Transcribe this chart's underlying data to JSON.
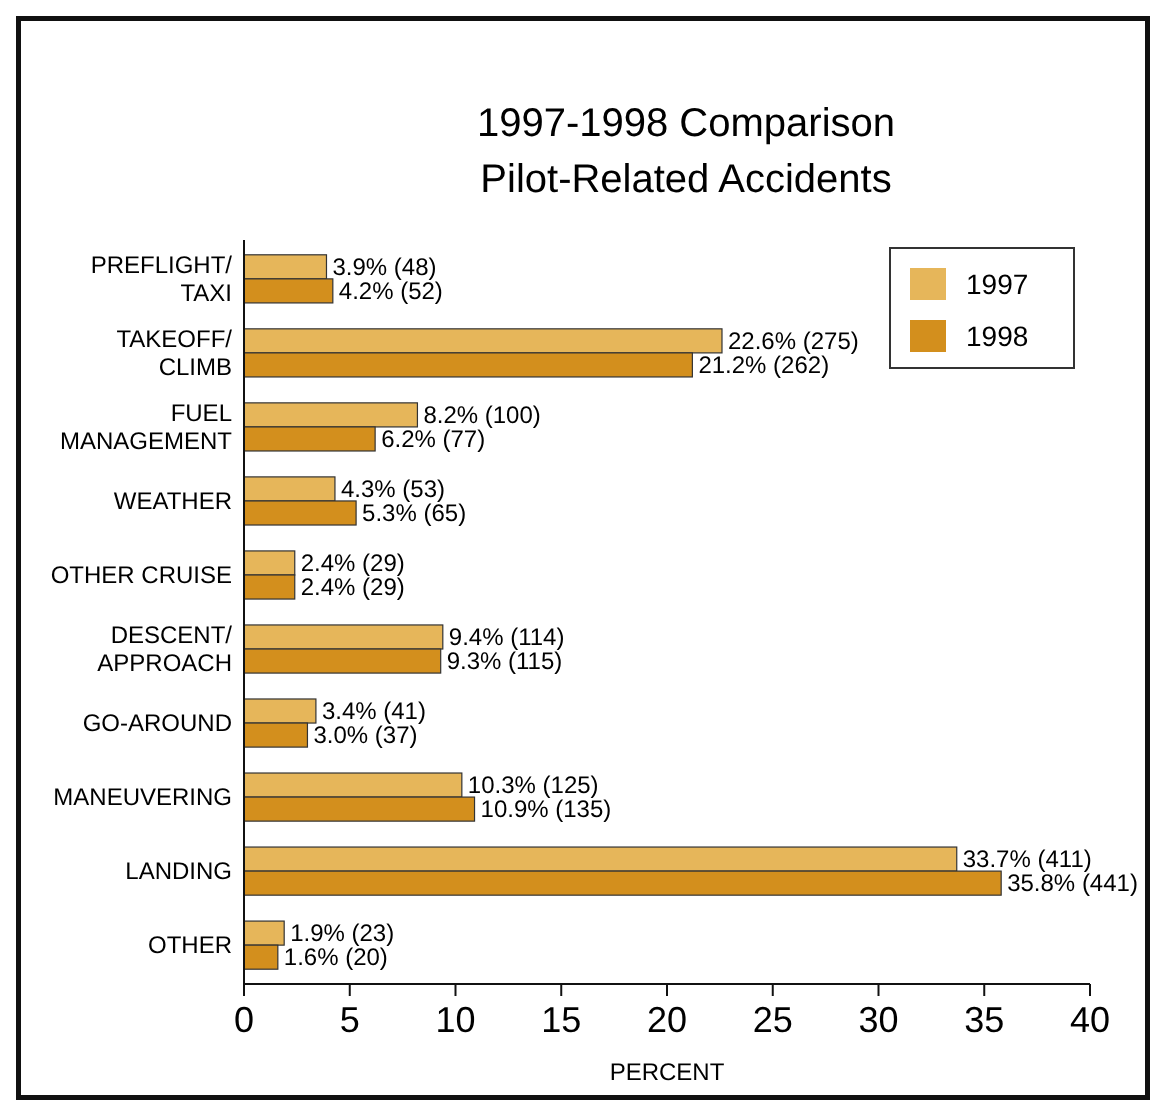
{
  "chart_data": {
    "type": "bar",
    "orientation": "horizontal",
    "title": "1997-1998 Comparison",
    "subtitle": "Pilot-Related Accidents",
    "xlabel": "PERCENT",
    "categories": [
      "PREFLIGHT/\nTAXI",
      "TAKEOFF/\nCLIMB",
      "FUEL\nMANAGEMENT",
      "WEATHER",
      "OTHER CRUISE",
      "DESCENT/\nAPPROACH",
      "GO-AROUND",
      "MANEUVERING",
      "LANDING",
      "OTHER"
    ],
    "series": [
      {
        "name": "1997",
        "color": "#e6b65a",
        "values": [
          3.9,
          22.6,
          8.2,
          4.3,
          2.4,
          9.4,
          3.4,
          10.3,
          33.7,
          1.9
        ],
        "value_labels": [
          "3.9% (48)",
          "22.6% (275)",
          "8.2% (100)",
          "4.3% (53)",
          "2.4% (29)",
          "9.4% (114)",
          "3.4% (41)",
          "10.3% (125)",
          "33.7% (411)",
          "1.9% (23)"
        ]
      },
      {
        "name": "1998",
        "color": "#d38f1d",
        "values": [
          4.2,
          21.2,
          6.2,
          5.3,
          2.4,
          9.3,
          3.0,
          10.9,
          35.8,
          1.6
        ],
        "value_labels": [
          "4.2% (52)",
          "21.2% (262)",
          "6.2% (77)",
          "5.3% (65)",
          "2.4% (29)",
          "9.3% (115)",
          "3.0% (37)",
          "10.9% (135)",
          "35.8% (441)",
          "1.6% (20)"
        ]
      }
    ],
    "xlim": [
      0,
      40
    ],
    "xticks": [
      0,
      5,
      10,
      15,
      20,
      25,
      30,
      35,
      40
    ],
    "legend": "top right",
    "grid": false
  }
}
